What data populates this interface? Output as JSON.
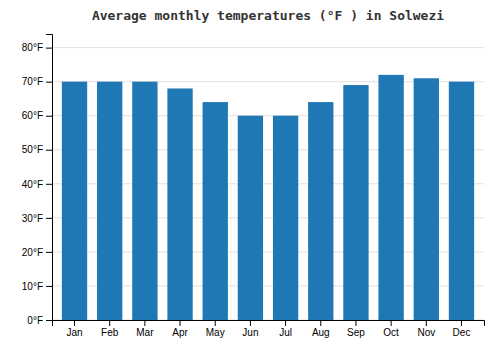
{
  "chart_data": {
    "type": "bar",
    "title": "Average monthly temperatures (°F ) in Solwezi",
    "categories": [
      "Jan",
      "Feb",
      "Mar",
      "Apr",
      "May",
      "Jun",
      "Jul",
      "Aug",
      "Sep",
      "Oct",
      "Nov",
      "Dec"
    ],
    "values": [
      70,
      70,
      70,
      68,
      64,
      60,
      60,
      64,
      69,
      72,
      71,
      70
    ],
    "ylim": [
      0,
      84
    ],
    "yticks": [
      {
        "value": 0,
        "label": "0°F"
      },
      {
        "value": 10,
        "label": "10°F"
      },
      {
        "value": 20,
        "label": "20°F"
      },
      {
        "value": 30,
        "label": "30°F"
      },
      {
        "value": 40,
        "label": "40°F"
      },
      {
        "value": 50,
        "label": "50°F"
      },
      {
        "value": 60,
        "label": "60°F"
      },
      {
        "value": 70,
        "label": "70°F"
      },
      {
        "value": 80,
        "label": "80°F"
      }
    ],
    "grid": true
  }
}
